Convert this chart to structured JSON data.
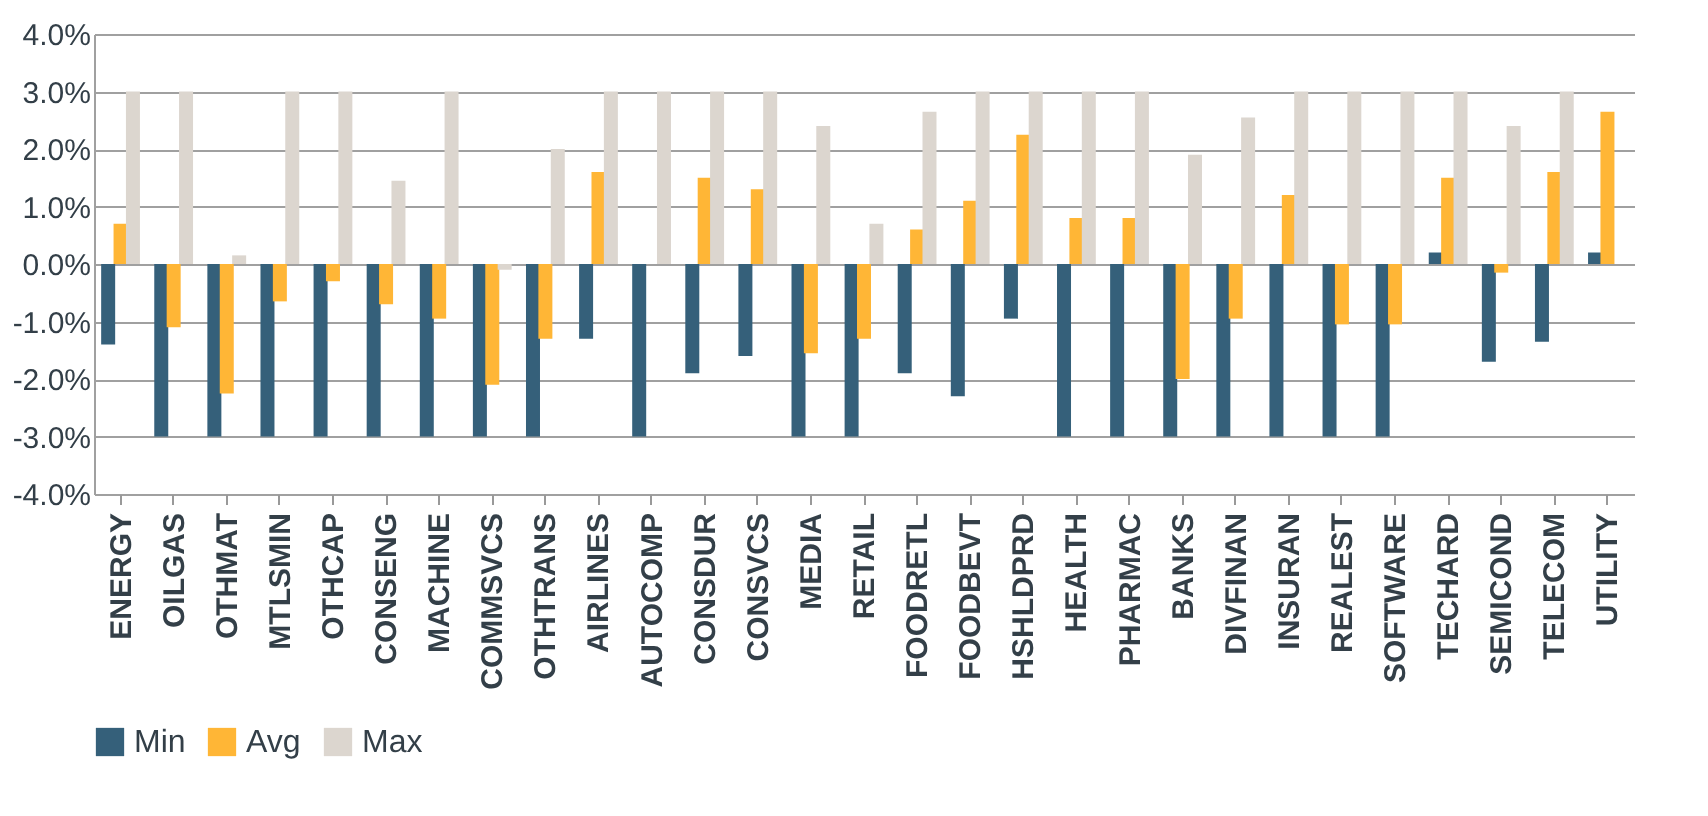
{
  "chart_data": {
    "type": "bar",
    "categories": [
      "ENERGY",
      "OILGAS",
      "OTHMAT",
      "MTLSMIN",
      "OTHCAP",
      "CONSENG",
      "MACHINE",
      "COMMSVCS",
      "OTHTRANS",
      "AIRLINES",
      "AUTOCOMP",
      "CONSDUR",
      "CONSVCS",
      "MEDIA",
      "RETAIL",
      "FOODRETL",
      "FOODBEVT",
      "HSHLDPRD",
      "HEALTH",
      "PHARMAC",
      "BANKS",
      "DIVFINAN",
      "INSURAN",
      "REALEST",
      "SOFTWARE",
      "TECHARD",
      "SEMICOND",
      "TELECOM",
      "UTILITY"
    ],
    "series": [
      {
        "name": "Min",
        "color": "#35607a",
        "values": [
          -1.4,
          -3,
          -3,
          -3,
          -3,
          -3,
          -3,
          -3,
          -3,
          -1.3,
          -3,
          -1.9,
          -1.6,
          -3,
          -3,
          -1.9,
          -2.3,
          -0.95,
          -3,
          -3,
          -3,
          -3,
          -3,
          -3,
          -3,
          0.2,
          -1.7,
          -1.35,
          0.2
        ]
      },
      {
        "name": "Avg",
        "color": "#ffb636",
        "values": [
          0.7,
          -1.1,
          -2.25,
          -0.65,
          -0.3,
          -0.7,
          -0.95,
          -2.1,
          -1.3,
          1.6,
          0.0,
          1.5,
          1.3,
          -1.55,
          -1.3,
          0.6,
          1.1,
          2.25,
          0.8,
          0.8,
          -2.0,
          -0.95,
          1.2,
          -1.05,
          -1.05,
          1.5,
          -0.15,
          1.6,
          2.65
        ]
      },
      {
        "name": "Max",
        "color": "#dcd6cf",
        "values": [
          3,
          3,
          0.15,
          3,
          3,
          1.45,
          3,
          -0.1,
          2.0,
          3,
          3,
          3,
          3,
          2.4,
          0.7,
          2.65,
          3,
          3,
          3,
          3,
          1.9,
          2.55,
          3,
          3,
          3,
          3,
          2.4,
          3,
          null
        ]
      }
    ],
    "ylim": [
      -4,
      4
    ],
    "yticks": [
      {
        "value": -4,
        "label": "-4.0%"
      },
      {
        "value": -3,
        "label": "-3.0%"
      },
      {
        "value": -2,
        "label": "-2.0%"
      },
      {
        "value": -1,
        "label": "-1.0%"
      },
      {
        "value": 0,
        "label": "0.0%"
      },
      {
        "value": 1,
        "label": "1.0%"
      },
      {
        "value": 2,
        "label": "2.0%"
      },
      {
        "value": 3,
        "label": "3.0%"
      },
      {
        "value": 4,
        "label": "4.0%"
      }
    ],
    "grid": "y",
    "legend": "bottom"
  }
}
